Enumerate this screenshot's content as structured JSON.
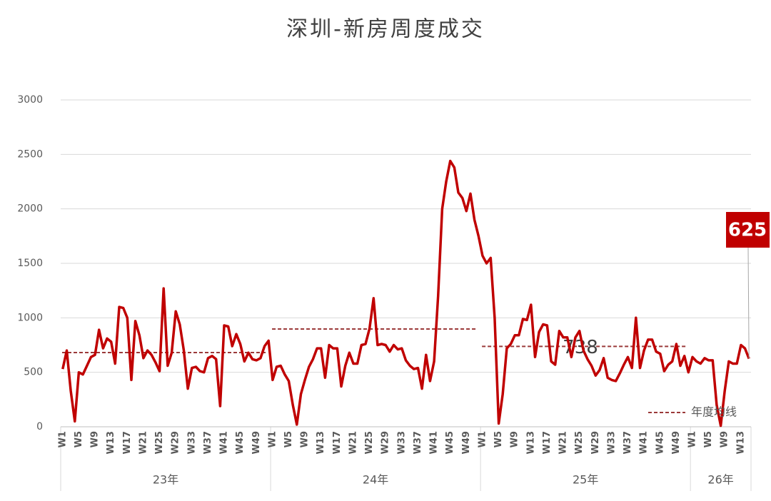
{
  "chart_data": {
    "type": "line",
    "title": "深圳-新房周度成交",
    "ylim": [
      0,
      3000
    ],
    "yticks": [
      0,
      500,
      1000,
      1500,
      2000,
      2500,
      3000
    ],
    "grid": true,
    "groups": [
      {
        "label": "23年",
        "categories": [
          "W1",
          null,
          null,
          null,
          "W5",
          null,
          null,
          null,
          "W9",
          null,
          null,
          null,
          "W13",
          null,
          null,
          null,
          "W17",
          null,
          null,
          null,
          "W21",
          null,
          null,
          null,
          "W25",
          null,
          null,
          null,
          "W29",
          null,
          null,
          null,
          "W33",
          null,
          null,
          null,
          "W37",
          null,
          null,
          null,
          "W41",
          null,
          null,
          null,
          "W45",
          null,
          null,
          null,
          "W49",
          null,
          null,
          null
        ]
      },
      {
        "label": "24年",
        "categories": [
          "W1",
          null,
          null,
          null,
          "W5",
          null,
          null,
          null,
          "W9",
          null,
          null,
          null,
          "W13",
          null,
          null,
          null,
          "W17",
          null,
          null,
          null,
          "W21",
          null,
          null,
          null,
          "W25",
          null,
          null,
          null,
          "W29",
          null,
          null,
          null,
          "W33",
          null,
          null,
          null,
          "W37",
          null,
          null,
          null,
          "W41",
          null,
          null,
          null,
          "W45",
          null,
          null,
          null,
          "W49",
          null,
          null,
          null
        ]
      },
      {
        "label": "25年",
        "categories": [
          "W1",
          null,
          null,
          null,
          "W5",
          null,
          null,
          null,
          "W9",
          null,
          null,
          null,
          "W13",
          null,
          null,
          null,
          "W17",
          null,
          null,
          null,
          "W21",
          null,
          null,
          null,
          "W25",
          null,
          null,
          null,
          "W29",
          null,
          null,
          null,
          "W33",
          null,
          null,
          null,
          "W37",
          null,
          null,
          null,
          "W41",
          null,
          null,
          null,
          "W45",
          null,
          null,
          null,
          "W49",
          null,
          null,
          null
        ]
      },
      {
        "label": "26年",
        "categories": [
          "W1",
          null,
          null,
          null,
          "W5",
          null,
          null,
          null,
          "W9",
          null,
          null,
          null,
          "W13",
          null,
          null
        ]
      }
    ],
    "series": [
      {
        "color": "#c00000",
        "values": [
          530,
          700,
          330,
          50,
          500,
          480,
          560,
          640,
          660,
          890,
          720,
          810,
          780,
          580,
          1100,
          1090,
          1000,
          430,
          970,
          840,
          630,
          700,
          660,
          590,
          510,
          1270,
          560,
          680,
          1060,
          940,
          700,
          350,
          540,
          550,
          510,
          500,
          630,
          650,
          620,
          190,
          930,
          920,
          740,
          850,
          760,
          600,
          680,
          620,
          610,
          630,
          740,
          790,
          430,
          550,
          560,
          480,
          420,
          200,
          20,
          300,
          430,
          550,
          620,
          720,
          720,
          450,
          750,
          720,
          720,
          370,
          560,
          680,
          580,
          580,
          750,
          760,
          900,
          1180,
          750,
          760,
          750,
          690,
          750,
          710,
          720,
          610,
          560,
          530,
          540,
          350,
          660,
          420,
          600,
          1200,
          2000,
          2250,
          2440,
          2380,
          2150,
          2100,
          1980,
          2140,
          1900,
          1750,
          1570,
          1500,
          1550,
          1000,
          30,
          300,
          720,
          760,
          840,
          840,
          990,
          980,
          1120,
          640,
          870,
          940,
          930,
          600,
          570,
          880,
          820,
          820,
          640,
          820,
          880,
          700,
          620,
          560,
          470,
          520,
          630,
          450,
          430,
          420,
          490,
          570,
          640,
          540,
          1000,
          540,
          700,
          800,
          800,
          690,
          670,
          510,
          570,
          600,
          760,
          560,
          650,
          500,
          640,
          600,
          580,
          630,
          610,
          610,
          200,
          10,
          330,
          600,
          580,
          580,
          750,
          720,
          625
        ]
      }
    ],
    "averages": {
      "name": "年度均线",
      "color": "#9b3a3a",
      "values": [
        681,
        897,
        738
      ]
    },
    "legend": "lower right"
  }
}
